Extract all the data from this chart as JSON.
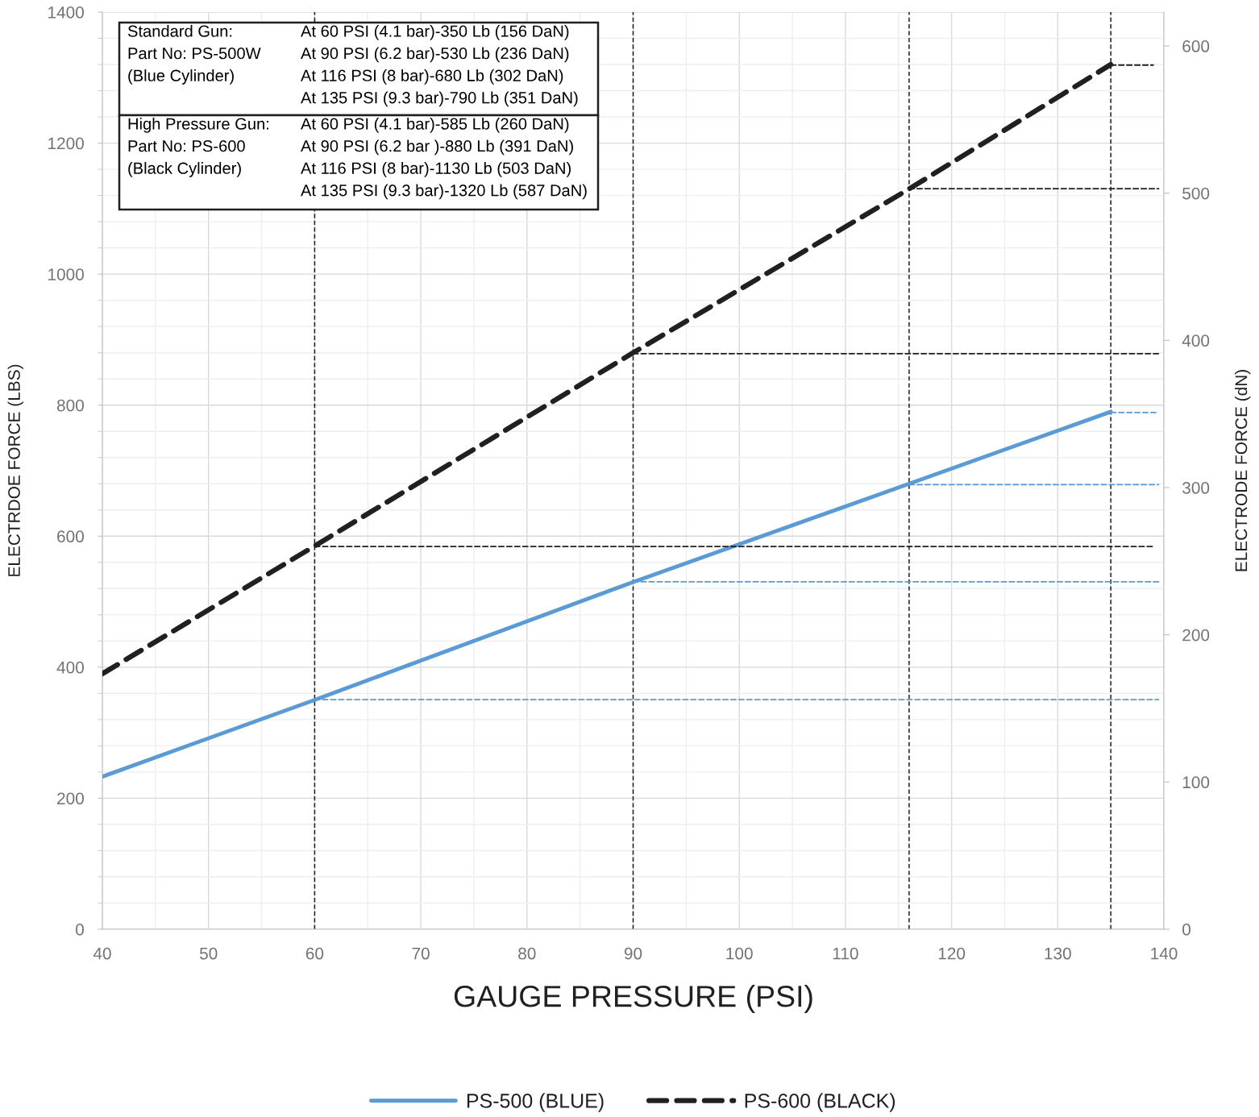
{
  "chart_data": {
    "type": "line",
    "xlabel": "GAUGE PRESSURE (PSI)",
    "ylabel": "ELECTRDOE FORCE (LBS)",
    "y2label": "ELECTRODE FORCE (dN)",
    "x": [
      40,
      60,
      90,
      116,
      135
    ],
    "series": [
      {
        "name": "PS-500 (BLUE)",
        "color": "#5b9bd5",
        "line_style": "solid",
        "values": [
          233,
          350,
          530,
          680,
          790
        ]
      },
      {
        "name": "PS-600 (BLACK)",
        "color": "#231f20",
        "line_style": "dashed",
        "values": [
          390,
          585,
          880,
          1130,
          1320
        ]
      },
      {
        "axis": "y2",
        "x": [
          60,
          139.5
        ],
        "values": [
          156,
          156
        ],
        "color": "#5b9bd5",
        "line_style": "dashed"
      },
      {
        "axis": "y2",
        "x": [
          90,
          139.5
        ],
        "values": [
          236,
          236
        ],
        "color": "#5b9bd5",
        "line_style": "dashed"
      },
      {
        "axis": "y2",
        "x": [
          116,
          139.5
        ],
        "values": [
          302,
          302
        ],
        "color": "#5b9bd5",
        "line_style": "dashed"
      },
      {
        "axis": "y2",
        "x": [
          135,
          139.5
        ],
        "values": [
          351,
          351
        ],
        "color": "#5b9bd5",
        "line_style": "dashed"
      },
      {
        "axis": "y2",
        "x": [
          60,
          139
        ],
        "values": [
          260,
          260
        ],
        "color": "#231f20",
        "line_style": "dashed"
      },
      {
        "axis": "y2",
        "x": [
          90,
          139.5
        ],
        "values": [
          391,
          391
        ],
        "color": "#231f20",
        "line_style": "dashed"
      },
      {
        "axis": "y2",
        "x": [
          116,
          139.5
        ],
        "values": [
          503,
          503
        ],
        "color": "#231f20",
        "line_style": "dashed"
      },
      {
        "axis": "y2",
        "x": [
          135,
          139
        ],
        "values": [
          587,
          587
        ],
        "color": "#231f20",
        "line_style": "dashed"
      }
    ],
    "ref_lines": [
      {
        "axis": "x",
        "value": 60,
        "color": "#231f20",
        "line_style": "dashed"
      },
      {
        "axis": "x",
        "value": 90,
        "color": "#231f20",
        "line_style": "dashed"
      },
      {
        "axis": "x",
        "value": 116,
        "color": "#231f20",
        "line_style": "dashed"
      },
      {
        "axis": "x",
        "value": 135,
        "color": "#231f20",
        "line_style": "dashed"
      }
    ],
    "xlim": [
      40,
      140
    ],
    "xticks": [
      40,
      {
        "value": 45,
        "label": null
      },
      50,
      {
        "value": 55,
        "label": null
      },
      60,
      {
        "value": 65,
        "label": null
      },
      70,
      {
        "value": 75,
        "label": null
      },
      80,
      {
        "value": 85,
        "label": null
      },
      90,
      {
        "value": 95,
        "label": null
      },
      100,
      {
        "value": 105,
        "label": null
      },
      110,
      {
        "value": 115,
        "label": null
      },
      120,
      {
        "value": 125,
        "label": null
      },
      130,
      {
        "value": 135,
        "label": null
      },
      140
    ],
    "ylim": [
      0,
      1400
    ],
    "yticks": [
      0,
      {
        "value": 40,
        "label": null
      },
      {
        "value": 80,
        "label": null
      },
      {
        "value": 120,
        "label": null
      },
      {
        "value": 160,
        "label": null
      },
      200,
      {
        "value": 240,
        "label": null
      },
      {
        "value": 280,
        "label": null
      },
      {
        "value": 320,
        "label": null
      },
      {
        "value": 360,
        "label": null
      },
      400,
      {
        "value": 440,
        "label": null
      },
      {
        "value": 480,
        "label": null
      },
      {
        "value": 520,
        "label": null
      },
      {
        "value": 560,
        "label": null
      },
      600,
      {
        "value": 640,
        "label": null
      },
      {
        "value": 680,
        "label": null
      },
      {
        "value": 720,
        "label": null
      },
      {
        "value": 760,
        "label": null
      },
      800,
      {
        "value": 840,
        "label": null
      },
      {
        "value": 880,
        "label": null
      },
      {
        "value": 920,
        "label": null
      },
      {
        "value": 960,
        "label": null
      },
      1000,
      {
        "value": 1040,
        "label": null
      },
      {
        "value": 1080,
        "label": null
      },
      {
        "value": 1120,
        "label": null
      },
      {
        "value": 1160,
        "label": null
      },
      1200,
      {
        "value": 1240,
        "label": null
      },
      {
        "value": 1280,
        "label": null
      },
      {
        "value": 1320,
        "label": null
      },
      {
        "value": 1360,
        "label": null
      },
      1400
    ],
    "y2lim": [
      0,
      623
    ],
    "y2ticks": [
      0,
      100,
      200,
      300,
      400,
      500,
      600
    ],
    "grid": true,
    "legend": "bottom",
    "annotations": [
      "Standard Gun:\nPart No: PS-500W\n(Blue Cylinder)",
      "At 60 PSI (4.1 bar)-350 Lb (156 DaN)\nAt 90 PSI (6.2 bar)-530 Lb (236 DaN)\nAt 116 PSI (8 bar)-680 Lb (302 DaN)\nAt 135 PSI (9.3 bar)-790 Lb (351 DaN)",
      "High Pressure Gun:\nPart No: PS-600\n(Black Cylinder)",
      "At 60 PSI (4.1 bar)-585 Lb (260 DaN)\nAt 90 PSI (6.2 bar )-880 Lb (391 DaN)\nAt 116 PSI (8 bar)-1130 Lb (503 DaN)\nAt 135 PSI (9.3 bar)-1320 Lb (587 DaN)"
    ]
  }
}
